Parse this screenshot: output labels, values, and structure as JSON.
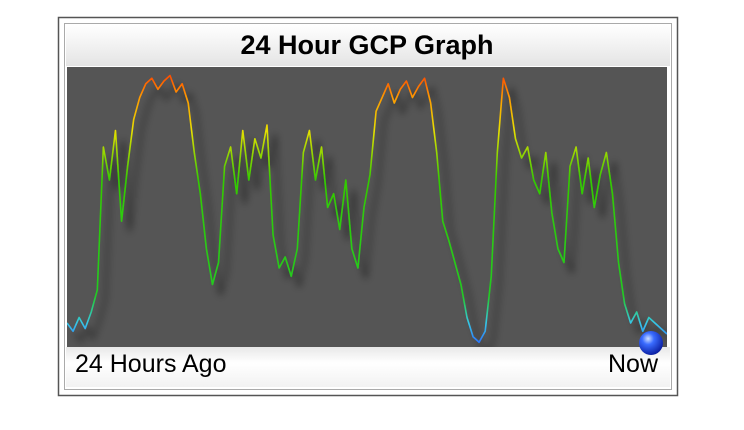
{
  "chart_data": {
    "type": "line",
    "title": "24 Hour GCP Graph",
    "x_start_label": "24 Hours Ago",
    "x_end_label": "Now",
    "ylim": [
      0,
      1
    ],
    "values": [
      0.08,
      0.05,
      0.1,
      0.06,
      0.12,
      0.2,
      0.72,
      0.6,
      0.78,
      0.45,
      0.65,
      0.82,
      0.9,
      0.95,
      0.97,
      0.93,
      0.96,
      0.98,
      0.92,
      0.95,
      0.88,
      0.7,
      0.55,
      0.35,
      0.22,
      0.3,
      0.65,
      0.72,
      0.55,
      0.78,
      0.6,
      0.75,
      0.68,
      0.8,
      0.4,
      0.28,
      0.32,
      0.25,
      0.35,
      0.7,
      0.78,
      0.6,
      0.72,
      0.5,
      0.55,
      0.42,
      0.6,
      0.35,
      0.28,
      0.5,
      0.62,
      0.85,
      0.9,
      0.95,
      0.88,
      0.93,
      0.96,
      0.9,
      0.94,
      0.97,
      0.88,
      0.7,
      0.45,
      0.38,
      0.3,
      0.22,
      0.1,
      0.03,
      0.01,
      0.05,
      0.25,
      0.7,
      0.97,
      0.9,
      0.75,
      0.68,
      0.72,
      0.6,
      0.55,
      0.7,
      0.48,
      0.35,
      0.3,
      0.65,
      0.72,
      0.55,
      0.68,
      0.5,
      0.62,
      0.7,
      0.55,
      0.3,
      0.15,
      0.08,
      0.12,
      0.05,
      0.1,
      0.08,
      0.06,
      0.04
    ]
  }
}
